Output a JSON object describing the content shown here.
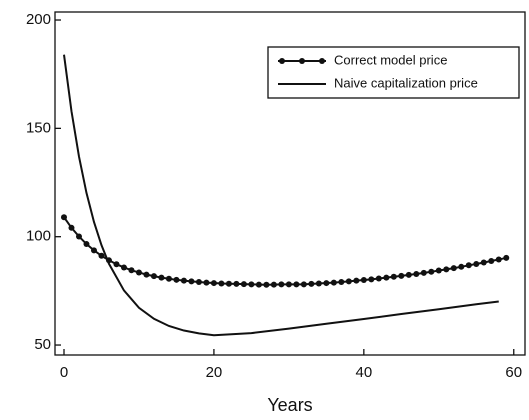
{
  "chart_data": {
    "type": "line",
    "x_label": "Years",
    "xlim": [
      -1.2,
      61.5
    ],
    "ylim": [
      45.4,
      203.7
    ],
    "xticks": [
      0,
      20,
      40,
      60
    ],
    "yticks": [
      50,
      100,
      150,
      200
    ],
    "legend": "upper right",
    "series": [
      {
        "name": "Correct model price",
        "color": "#111111",
        "marker": true,
        "x": [
          0,
          1,
          2,
          3,
          4,
          5,
          6,
          7,
          8,
          9,
          10,
          11,
          12,
          13,
          14,
          15,
          16,
          17,
          18,
          19,
          20,
          21,
          22,
          23,
          24,
          25,
          26,
          27,
          28,
          29,
          30,
          31,
          32,
          33,
          34,
          35,
          36,
          37,
          38,
          39,
          40,
          41,
          42,
          43,
          44,
          45,
          46,
          47,
          48,
          49,
          50,
          51,
          52,
          53,
          54,
          55,
          56,
          57,
          58,
          59
        ],
        "values": [
          109.0,
          104.1,
          100.1,
          96.6,
          93.7,
          91.2,
          89.1,
          87.3,
          85.8,
          84.5,
          83.5,
          82.5,
          81.8,
          81.1,
          80.6,
          80.1,
          79.7,
          79.4,
          79.1,
          78.8,
          78.6,
          78.4,
          78.3,
          78.2,
          78.1,
          78.0,
          77.9,
          77.8,
          77.9,
          78.0,
          78.0,
          78.0,
          78.0,
          78.2,
          78.4,
          78.6,
          78.8,
          79.1,
          79.4,
          79.7,
          80.0,
          80.3,
          80.7,
          81.1,
          81.5,
          81.9,
          82.4,
          82.8,
          83.3,
          83.8,
          84.4,
          84.9,
          85.5,
          86.1,
          86.8,
          87.4,
          88.1,
          88.8,
          89.5,
          90.2
        ]
      },
      {
        "name": "Naive capitalization price",
        "color": "#111111",
        "marker": false,
        "x": [
          0,
          1,
          2,
          3,
          4,
          5,
          6,
          8,
          10,
          12,
          14,
          16,
          18,
          20,
          25,
          30,
          35,
          40,
          45,
          50,
          55,
          58
        ],
        "values": [
          184.0,
          157.9,
          137.0,
          120.2,
          106.8,
          96.1,
          87.5,
          75.2,
          67.2,
          62.1,
          58.8,
          56.7,
          55.4,
          54.5,
          55.5,
          57.6,
          59.8,
          62.0,
          64.3,
          66.5,
          68.8,
          70.1
        ]
      }
    ]
  }
}
